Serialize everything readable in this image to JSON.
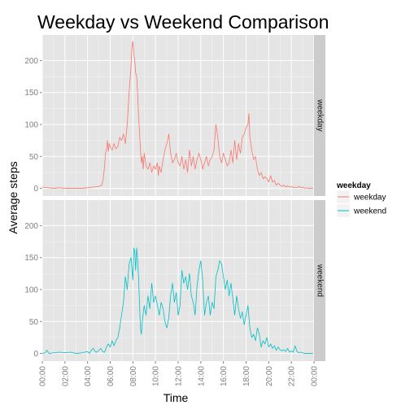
{
  "chart_data": {
    "type": "line",
    "title": "Weekday vs Weekend Comparison",
    "xlabel": "Time",
    "ylabel": "Average steps",
    "x_ticks": [
      "00:00",
      "02:00",
      "04:00",
      "06:00",
      "08:00",
      "10:00",
      "12:00",
      "14:00",
      "16:00",
      "18:00",
      "20:00",
      "22:00",
      "00:00"
    ],
    "y_ticks": [
      0,
      50,
      100,
      150,
      200
    ],
    "xlim": [
      0,
      1440
    ],
    "ylim": [
      -12,
      240
    ],
    "x_unit": "minutes since 00:00",
    "grid": true,
    "legend": {
      "title": "weekday",
      "placement": "right",
      "entries": [
        "weekday",
        "weekend"
      ]
    },
    "colors": {
      "weekday": "#F8766D",
      "weekend": "#00BFC4",
      "panel_bg": "#E5E5E5",
      "strip_bg": "#CCCCCC",
      "grid": "#FFFFFF"
    },
    "panels": [
      {
        "strip_label": "weekday",
        "series": {
          "name": "weekday",
          "color": "#F8766D",
          "points": [
            [
              0,
              2
            ],
            [
              30,
              1
            ],
            [
              60,
              0
            ],
            [
              90,
              1
            ],
            [
              120,
              0
            ],
            [
              150,
              0
            ],
            [
              180,
              0
            ],
            [
              210,
              0
            ],
            [
              240,
              1
            ],
            [
              270,
              2
            ],
            [
              300,
              3
            ],
            [
              315,
              5
            ],
            [
              320,
              10
            ],
            [
              325,
              20
            ],
            [
              330,
              35
            ],
            [
              335,
              55
            ],
            [
              340,
              60
            ],
            [
              345,
              75
            ],
            [
              350,
              58
            ],
            [
              355,
              70
            ],
            [
              360,
              65
            ],
            [
              370,
              60
            ],
            [
              380,
              70
            ],
            [
              390,
              62
            ],
            [
              400,
              65
            ],
            [
              410,
              80
            ],
            [
              420,
              75
            ],
            [
              430,
              85
            ],
            [
              440,
              70
            ],
            [
              450,
              100
            ],
            [
              460,
              150
            ],
            [
              470,
              190
            ],
            [
              475,
              220
            ],
            [
              480,
              230
            ],
            [
              485,
              210
            ],
            [
              490,
              200
            ],
            [
              495,
              180
            ],
            [
              500,
              175
            ],
            [
              505,
              150
            ],
            [
              510,
              115
            ],
            [
              515,
              90
            ],
            [
              520,
              60
            ],
            [
              525,
              40
            ],
            [
              530,
              50
            ],
            [
              535,
              30
            ],
            [
              540,
              55
            ],
            [
              550,
              35
            ],
            [
              560,
              30
            ],
            [
              570,
              40
            ],
            [
              580,
              25
            ],
            [
              590,
              35
            ],
            [
              600,
              30
            ],
            [
              610,
              40
            ],
            [
              615,
              20
            ],
            [
              620,
              35
            ],
            [
              630,
              25
            ],
            [
              640,
              45
            ],
            [
              650,
              60
            ],
            [
              660,
              70
            ],
            [
              670,
              85
            ],
            [
              680,
              55
            ],
            [
              690,
              40
            ],
            [
              700,
              45
            ],
            [
              710,
              55
            ],
            [
              720,
              40
            ],
            [
              730,
              35
            ],
            [
              740,
              50
            ],
            [
              750,
              30
            ],
            [
              760,
              45
            ],
            [
              770,
              25
            ],
            [
              780,
              60
            ],
            [
              790,
              35
            ],
            [
              800,
              50
            ],
            [
              810,
              30
            ],
            [
              820,
              45
            ],
            [
              830,
              55
            ],
            [
              840,
              45
            ],
            [
              850,
              30
            ],
            [
              860,
              40
            ],
            [
              870,
              50
            ],
            [
              880,
              35
            ],
            [
              890,
              45
            ],
            [
              900,
              50
            ],
            [
              910,
              60
            ],
            [
              920,
              100
            ],
            [
              930,
              80
            ],
            [
              940,
              50
            ],
            [
              950,
              40
            ],
            [
              960,
              55
            ],
            [
              970,
              45
            ],
            [
              980,
              35
            ],
            [
              990,
              40
            ],
            [
              1000,
              60
            ],
            [
              1010,
              40
            ],
            [
              1020,
              75
            ],
            [
              1030,
              45
            ],
            [
              1040,
              70
            ],
            [
              1050,
              55
            ],
            [
              1060,
              80
            ],
            [
              1070,
              85
            ],
            [
              1080,
              95
            ],
            [
              1090,
              100
            ],
            [
              1095,
              117
            ],
            [
              1100,
              80
            ],
            [
              1110,
              60
            ],
            [
              1120,
              45
            ],
            [
              1130,
              50
            ],
            [
              1140,
              30
            ],
            [
              1150,
              20
            ],
            [
              1160,
              25
            ],
            [
              1170,
              15
            ],
            [
              1180,
              18
            ],
            [
              1190,
              15
            ],
            [
              1200,
              10
            ],
            [
              1210,
              20
            ],
            [
              1220,
              10
            ],
            [
              1230,
              12
            ],
            [
              1240,
              5
            ],
            [
              1250,
              8
            ],
            [
              1260,
              5
            ],
            [
              1270,
              3
            ],
            [
              1280,
              5
            ],
            [
              1290,
              2
            ],
            [
              1300,
              4
            ],
            [
              1310,
              2
            ],
            [
              1320,
              3
            ],
            [
              1330,
              1
            ],
            [
              1340,
              2
            ],
            [
              1350,
              1
            ],
            [
              1360,
              3
            ],
            [
              1370,
              1
            ],
            [
              1380,
              2
            ],
            [
              1390,
              0
            ],
            [
              1400,
              1
            ],
            [
              1410,
              0
            ],
            [
              1420,
              0
            ],
            [
              1435,
              0
            ]
          ]
        }
      },
      {
        "strip_label": "weekend",
        "series": {
          "name": "weekend",
          "color": "#00BFC4",
          "points": [
            [
              0,
              0
            ],
            [
              15,
              1
            ],
            [
              25,
              5
            ],
            [
              35,
              0
            ],
            [
              60,
              1
            ],
            [
              90,
              2
            ],
            [
              120,
              1
            ],
            [
              150,
              2
            ],
            [
              180,
              0
            ],
            [
              210,
              1
            ],
            [
              240,
              3
            ],
            [
              250,
              0
            ],
            [
              260,
              5
            ],
            [
              270,
              8
            ],
            [
              280,
              3
            ],
            [
              290,
              2
            ],
            [
              300,
              5
            ],
            [
              310,
              8
            ],
            [
              320,
              3
            ],
            [
              330,
              2
            ],
            [
              340,
              10
            ],
            [
              350,
              15
            ],
            [
              360,
              10
            ],
            [
              370,
              20
            ],
            [
              380,
              12
            ],
            [
              390,
              20
            ],
            [
              400,
              25
            ],
            [
              410,
              40
            ],
            [
              420,
              60
            ],
            [
              430,
              80
            ],
            [
              440,
              120
            ],
            [
              450,
              100
            ],
            [
              460,
              140
            ],
            [
              470,
              150
            ],
            [
              480,
              115
            ],
            [
              485,
              165
            ],
            [
              490,
              160
            ],
            [
              495,
              130
            ],
            [
              500,
              165
            ],
            [
              505,
              150
            ],
            [
              510,
              120
            ],
            [
              515,
              80
            ],
            [
              520,
              40
            ],
            [
              525,
              30
            ],
            [
              530,
              50
            ],
            [
              540,
              75
            ],
            [
              550,
              60
            ],
            [
              560,
              90
            ],
            [
              570,
              70
            ],
            [
              580,
              110
            ],
            [
              590,
              80
            ],
            [
              600,
              90
            ],
            [
              610,
              75
            ],
            [
              620,
              60
            ],
            [
              630,
              80
            ],
            [
              640,
              70
            ],
            [
              650,
              50
            ],
            [
              660,
              40
            ],
            [
              670,
              55
            ],
            [
              680,
              90
            ],
            [
              690,
              110
            ],
            [
              700,
              80
            ],
            [
              710,
              95
            ],
            [
              720,
              60
            ],
            [
              730,
              75
            ],
            [
              740,
              130
            ],
            [
              750,
              110
            ],
            [
              760,
              120
            ],
            [
              770,
              100
            ],
            [
              780,
              125
            ],
            [
              790,
              90
            ],
            [
              800,
              80
            ],
            [
              810,
              60
            ],
            [
              820,
              105
            ],
            [
              830,
              130
            ],
            [
              840,
              145
            ],
            [
              850,
              115
            ],
            [
              860,
              60
            ],
            [
              870,
              80
            ],
            [
              880,
              90
            ],
            [
              890,
              60
            ],
            [
              900,
              80
            ],
            [
              910,
              70
            ],
            [
              920,
              120
            ],
            [
              930,
              130
            ],
            [
              940,
              145
            ],
            [
              950,
              140
            ],
            [
              960,
              120
            ],
            [
              970,
              100
            ],
            [
              980,
              115
            ],
            [
              990,
              90
            ],
            [
              1000,
              110
            ],
            [
              1010,
              85
            ],
            [
              1020,
              60
            ],
            [
              1030,
              90
            ],
            [
              1040,
              70
            ],
            [
              1050,
              55
            ],
            [
              1060,
              65
            ],
            [
              1070,
              45
            ],
            [
              1080,
              60
            ],
            [
              1090,
              75
            ],
            [
              1100,
              40
            ],
            [
              1110,
              25
            ],
            [
              1120,
              30
            ],
            [
              1130,
              20
            ],
            [
              1140,
              40
            ],
            [
              1150,
              30
            ],
            [
              1160,
              10
            ],
            [
              1170,
              20
            ],
            [
              1180,
              15
            ],
            [
              1190,
              25
            ],
            [
              1200,
              10
            ],
            [
              1210,
              15
            ],
            [
              1220,
              8
            ],
            [
              1230,
              12
            ],
            [
              1240,
              5
            ],
            [
              1250,
              10
            ],
            [
              1260,
              6
            ],
            [
              1270,
              4
            ],
            [
              1280,
              6
            ],
            [
              1290,
              3
            ],
            [
              1300,
              8
            ],
            [
              1310,
              2
            ],
            [
              1320,
              4
            ],
            [
              1330,
              2
            ],
            [
              1340,
              12
            ],
            [
              1350,
              3
            ],
            [
              1360,
              1
            ],
            [
              1370,
              2
            ],
            [
              1380,
              1
            ],
            [
              1390,
              0
            ],
            [
              1410,
              0
            ],
            [
              1435,
              0
            ]
          ]
        }
      }
    ]
  }
}
